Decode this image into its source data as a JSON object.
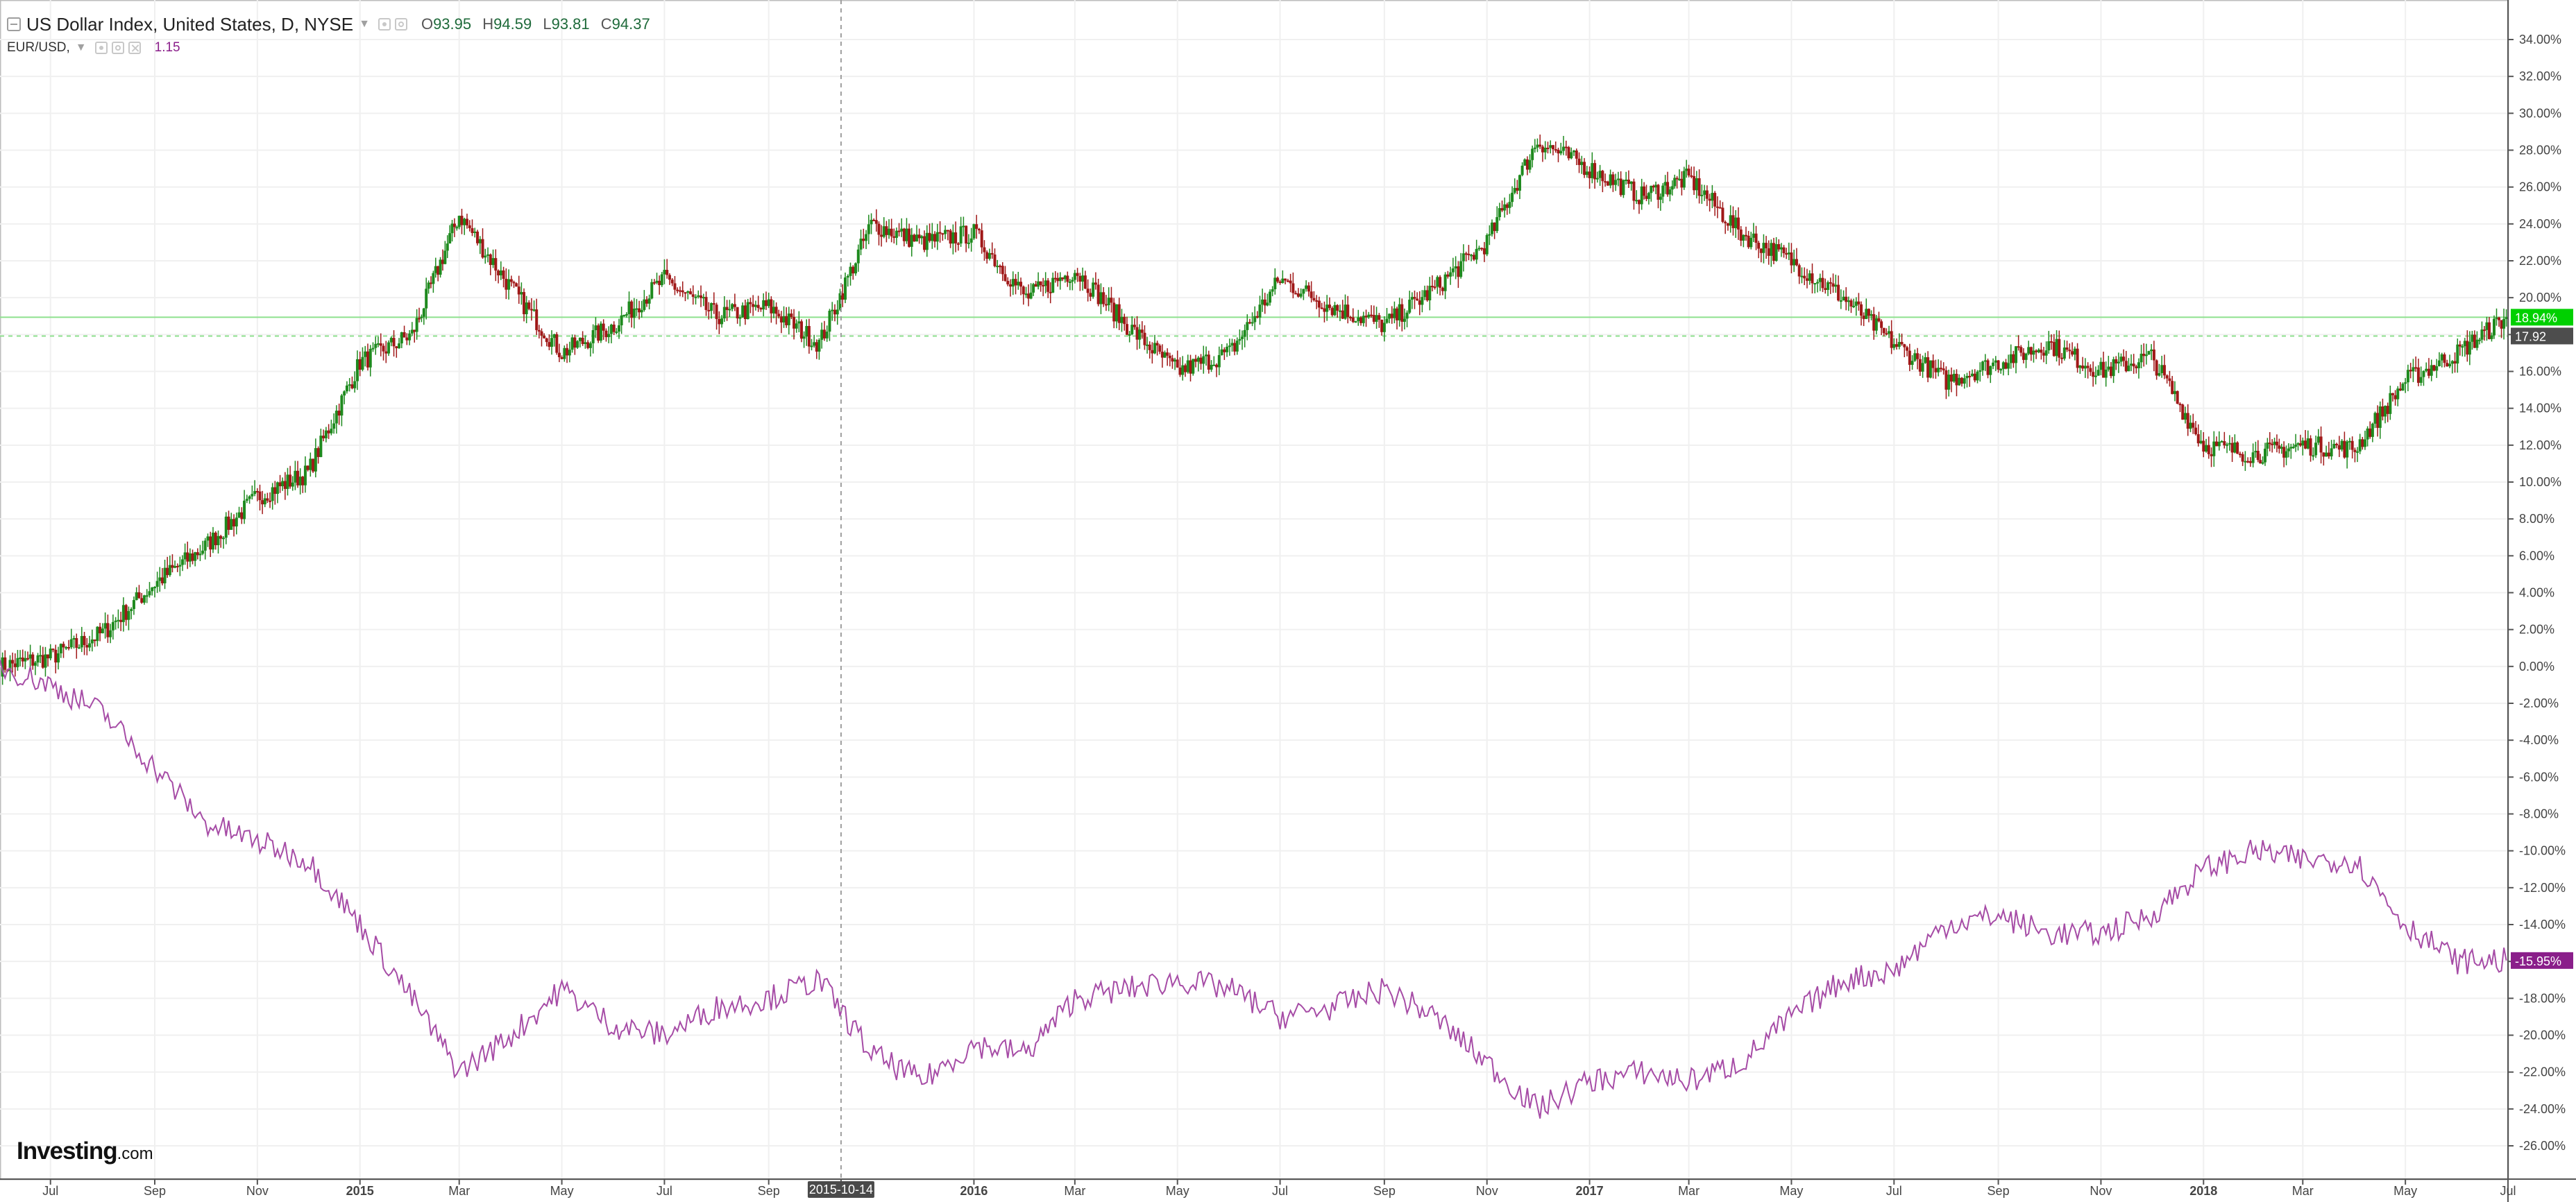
{
  "header": {
    "title": "US Dollar Index, United States, D, NYSE",
    "ohlc": [
      {
        "key": "O",
        "value": "93.95"
      },
      {
        "key": "H",
        "value": "94.59"
      },
      {
        "key": "L",
        "value": "93.81"
      },
      {
        "key": "C",
        "value": "94.37"
      }
    ],
    "compare_symbol": "EUR/USD,",
    "compare_value": "1.15"
  },
  "logo": {
    "brand": "Investing",
    "suffix": ".com"
  },
  "colors": {
    "up": "#1e8a1e",
    "down": "#a01818",
    "compare_line": "#a64ca6",
    "last_value_tag": "#00d000",
    "compare_tag": "#8a1e8a",
    "close_tag": "#4d4d4d"
  },
  "chart_data": {
    "type": "line",
    "x_axis_type": "time",
    "x_ticks": [
      "Jul",
      "Sep",
      "Nov",
      "2015",
      "Mar",
      "May",
      "Jul",
      "Sep",
      "2015-10-14",
      "2016",
      "Mar",
      "May",
      "Jul",
      "Sep",
      "Nov",
      "2017",
      "Mar",
      "May",
      "Jul",
      "Sep",
      "Nov",
      "2018",
      "Mar",
      "May",
      "Jul"
    ],
    "y_ticks": [
      "34.00%",
      "32.00%",
      "30.00%",
      "28.00%",
      "26.00%",
      "24.00%",
      "22.00%",
      "20.00%",
      "18.00%",
      "16.00%",
      "14.00%",
      "12.00%",
      "10.00%",
      "8.00%",
      "6.00%",
      "4.00%",
      "2.00%",
      "0.00%",
      "-2.00%",
      "-4.00%",
      "-6.00%",
      "-8.00%",
      "-10.00%",
      "-12.00%",
      "-14.00%",
      "-16.00%",
      "-18.00%",
      "-20.00%",
      "-22.00%",
      "-24.00%",
      "-26.00%"
    ],
    "ylim": [
      -27,
      35
    ],
    "y_unit": "%",
    "crosshair_date": "2015-10-14",
    "price_tags": {
      "last": "18.94%",
      "close": "17.92",
      "compare": "-15.95%"
    },
    "series": [
      {
        "type": "candlestick",
        "x": [
          "2014-06-01",
          "2014-07-01",
          "2014-08-01",
          "2014-09-01",
          "2014-10-01",
          "2014-11-01",
          "2014-12-01",
          "2015-01-01",
          "2015-02-01",
          "2015-03-01",
          "2015-04-01",
          "2015-05-01",
          "2015-06-01",
          "2015-07-01",
          "2015-08-01",
          "2015-09-01",
          "2015-10-01",
          "2015-11-01",
          "2015-12-01",
          "2016-01-01",
          "2016-02-01",
          "2016-03-01",
          "2016-04-01",
          "2016-05-01",
          "2016-06-01",
          "2016-07-01",
          "2016-08-01",
          "2016-09-01",
          "2016-10-01",
          "2016-11-01",
          "2016-12-01",
          "2017-01-01",
          "2017-02-01",
          "2017-03-01",
          "2017-04-01",
          "2017-05-01",
          "2017-06-01",
          "2017-07-01",
          "2017-08-01",
          "2017-09-01",
          "2017-10-01",
          "2017-11-01",
          "2017-12-01",
          "2018-01-01",
          "2018-02-01",
          "2018-03-01",
          "2018-04-01",
          "2018-05-01",
          "2018-06-01",
          "2018-06-30"
        ],
        "values": [
          0.0,
          0.5,
          1.8,
          4.5,
          6.5,
          9.2,
          10.5,
          16.5,
          18.0,
          24.5,
          20.5,
          17.0,
          18.5,
          21.0,
          19.0,
          19.5,
          17.5,
          24.0,
          23.0,
          23.5,
          20.0,
          21.5,
          18.5,
          16.0,
          17.0,
          21.0,
          19.5,
          18.5,
          20.5,
          23.0,
          28.5,
          27.0,
          25.5,
          26.5,
          23.5,
          22.0,
          20.0,
          17.5,
          15.5,
          16.5,
          17.5,
          16.0,
          16.8,
          12.0,
          11.5,
          12.0,
          11.8,
          15.5,
          17.0,
          18.94
        ]
      },
      {
        "name": "EUR/USD",
        "type": "line",
        "x": [
          "2014-06-01",
          "2014-07-01",
          "2014-08-01",
          "2014-09-01",
          "2014-10-01",
          "2014-11-01",
          "2014-12-01",
          "2015-01-01",
          "2015-02-01",
          "2015-03-01",
          "2015-04-01",
          "2015-05-01",
          "2015-06-01",
          "2015-07-01",
          "2015-08-01",
          "2015-09-01",
          "2015-10-01",
          "2015-11-01",
          "2015-12-01",
          "2016-01-01",
          "2016-02-01",
          "2016-03-01",
          "2016-04-01",
          "2016-05-01",
          "2016-06-01",
          "2016-07-01",
          "2016-08-01",
          "2016-09-01",
          "2016-10-01",
          "2016-11-01",
          "2016-12-01",
          "2017-01-01",
          "2017-02-01",
          "2017-03-01",
          "2017-04-01",
          "2017-05-01",
          "2017-06-01",
          "2017-07-01",
          "2017-08-01",
          "2017-09-01",
          "2017-10-01",
          "2017-11-01",
          "2017-12-01",
          "2018-01-01",
          "2018-02-01",
          "2018-03-01",
          "2018-04-01",
          "2018-05-01",
          "2018-06-01",
          "2018-06-30"
        ],
        "values": [
          0.0,
          -1.0,
          -2.5,
          -5.5,
          -8.5,
          -9.5,
          -10.5,
          -14.0,
          -18.0,
          -22.0,
          -20.0,
          -17.5,
          -19.5,
          -20.0,
          -18.5,
          -18.0,
          -17.0,
          -21.0,
          -22.5,
          -20.5,
          -21.0,
          -18.0,
          -17.5,
          -17.0,
          -17.5,
          -19.0,
          -18.5,
          -17.5,
          -19.0,
          -21.5,
          -24.0,
          -22.5,
          -22.0,
          -22.5,
          -21.5,
          -19.0,
          -17.0,
          -16.5,
          -14.0,
          -13.5,
          -14.5,
          -14.5,
          -13.5,
          -11.0,
          -10.0,
          -10.5,
          -10.5,
          -14.0,
          -16.0,
          -15.95
        ]
      }
    ]
  }
}
